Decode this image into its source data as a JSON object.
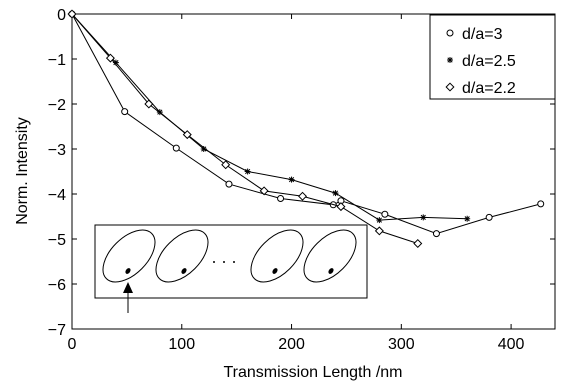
{
  "chart_data": {
    "type": "line",
    "title": "",
    "xlabel": "Transmission Length /nm",
    "ylabel": "Norm. Intensity",
    "xlim": [
      0,
      440
    ],
    "ylim": [
      -7,
      0
    ],
    "xticks": [
      0,
      100,
      200,
      300,
      400
    ],
    "yticks": [
      0,
      -1,
      -2,
      -3,
      -4,
      -5,
      -6,
      -7
    ],
    "xtick_labels": [
      "0",
      "100",
      "200",
      "300",
      "400"
    ],
    "ytick_labels": [
      "0",
      "−1",
      "−2",
      "−3",
      "−4",
      "−5",
      "−6",
      "−7"
    ],
    "grid": false,
    "legend_position": "top-right",
    "series": [
      {
        "name": "d/a=3",
        "marker": "circle",
        "x": [
          0,
          48,
          95,
          143,
          190,
          238,
          245,
          285,
          332,
          380,
          427
        ],
        "y": [
          0,
          -2.17,
          -2.98,
          -3.78,
          -4.1,
          -4.24,
          -4.15,
          -4.45,
          -4.88,
          -4.52,
          -4.22
        ]
      },
      {
        "name": "d/a=2.5",
        "marker": "star",
        "x": [
          0,
          40,
          80,
          120,
          160,
          200,
          240,
          280,
          320,
          360
        ],
        "y": [
          0,
          -1.08,
          -2.18,
          -3.0,
          -3.5,
          -3.68,
          -3.98,
          -4.58,
          -4.52,
          -4.55
        ]
      },
      {
        "name": "d/a=2.2",
        "marker": "diamond",
        "x": [
          0,
          35,
          70,
          105,
          140,
          175,
          210,
          245,
          280,
          315
        ],
        "y": [
          0,
          -0.98,
          -2.0,
          -2.68,
          -3.35,
          -3.93,
          -4.05,
          -4.28,
          -4.82,
          -5.1
        ]
      }
    ]
  }
}
